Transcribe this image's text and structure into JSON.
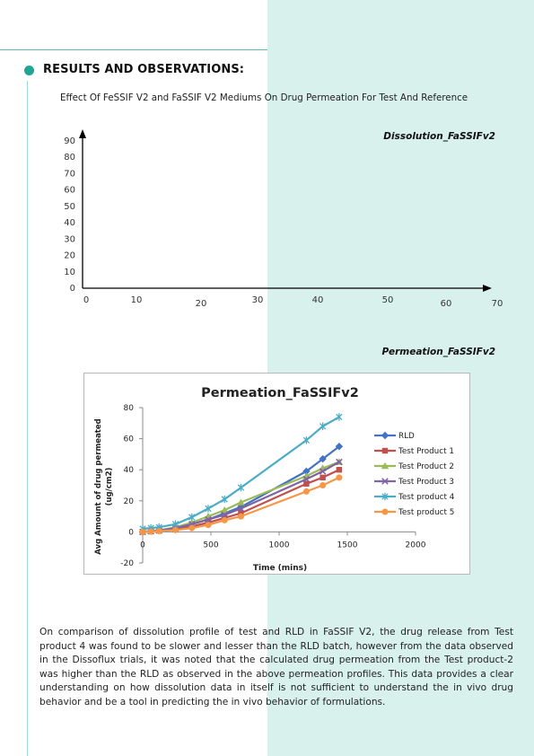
{
  "section": {
    "title": "RESULTS AND OBSERVATIONS:"
  },
  "subtitle": "Effect Of FeSSIF V2 and FaSSIF V2 Mediums On Drug Permeation For Test And Reference",
  "dissolution_label": "Dissolution_FaSSIFv2",
  "permeation_label": "Permeation_FaSSIFv2",
  "paragraph": "On comparison of dissolution profile of test and RLD in FaSSIF V2, the drug release from Test product 4 was found to be slower and lesser than the RLD batch, however from the data observed in the Dissoflux trials, it was noted that the calculated drug permeation from the Test product-2 was higher than the RLD as observed in the above permeation profiles. This data provides a clear understanding on how dissolution data in itself is not sufficient to understand the in vivo drug behavior and be a tool in predicting the in vivo behavior of formulations.",
  "chart_data": [
    {
      "type": "line",
      "title": "",
      "xlabel": "",
      "ylabel": "",
      "x_ticks": [
        0,
        10,
        20,
        30,
        40,
        50,
        60,
        70
      ],
      "y_ticks": [
        0,
        10,
        20,
        30,
        40,
        50,
        60,
        70,
        80,
        90
      ],
      "xlim": [
        0,
        70
      ],
      "ylim": [
        0,
        90
      ],
      "series": [],
      "grid": false
    },
    {
      "type": "line",
      "title": "Permeation_FaSSIFv2",
      "xlabel": "Time  (mins)",
      "ylabel": "Avg Amount of drug permeated (ug/cm2)",
      "xlim": [
        0,
        2000
      ],
      "ylim": [
        -20,
        80
      ],
      "x_ticks": [
        0,
        500,
        1000,
        1500,
        2000
      ],
      "y_ticks": [
        -20,
        0,
        20,
        40,
        60,
        80
      ],
      "grid": false,
      "legend": "right",
      "x": [
        0,
        60,
        120,
        240,
        360,
        480,
        600,
        720,
        1200,
        1320,
        1440
      ],
      "series": [
        {
          "name": "RLD",
          "color": "#4472c4",
          "marker": "diamond",
          "values": [
            0,
            0.5,
            1,
            2,
            5,
            8,
            12,
            16,
            39,
            47,
            55
          ]
        },
        {
          "name": "Test Product 1",
          "color": "#c0504d",
          "marker": "square",
          "values": [
            0,
            0.3,
            0.8,
            1.5,
            3.5,
            6,
            9,
            12,
            31,
            35,
            40
          ]
        },
        {
          "name": "Test Product 2",
          "color": "#9bbb59",
          "marker": "triangle",
          "values": [
            0,
            0.5,
            1,
            3,
            6,
            10,
            14,
            19,
            36,
            41,
            45
          ]
        },
        {
          "name": "Test Product 3",
          "color": "#8064a2",
          "marker": "x",
          "values": [
            0,
            0.4,
            0.9,
            2.5,
            5,
            8,
            11,
            15,
            34,
            39,
            45
          ]
        },
        {
          "name": "Test product 4",
          "color": "#4bacc6",
          "marker": "star",
          "values": [
            2,
            2.5,
            3,
            5,
            9.5,
            15,
            21,
            28.5,
            59,
            68,
            74
          ]
        },
        {
          "name": "Test product 5",
          "color": "#f79646",
          "marker": "circle",
          "values": [
            0,
            0.2,
            0.5,
            1.2,
            2.5,
            4.5,
            7.5,
            10,
            26,
            30,
            35
          ]
        }
      ]
    }
  ]
}
